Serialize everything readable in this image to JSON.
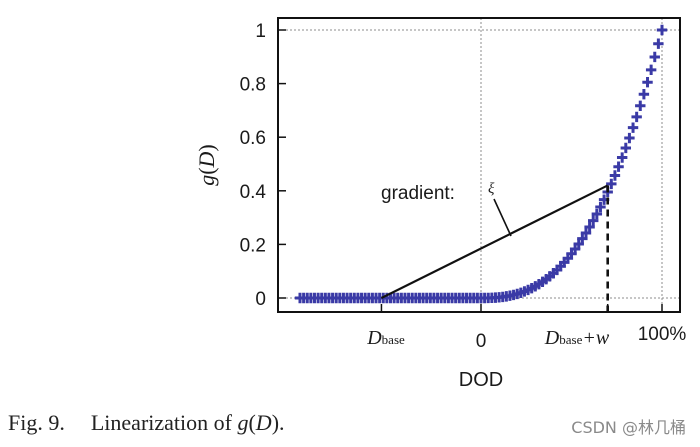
{
  "chart_data": {
    "type": "scatter",
    "title": "",
    "xlabel": "DOD",
    "ylabel_func": "g",
    "ylabel_arg": "D",
    "ylim": [
      0,
      1
    ],
    "y_ticks": [
      "0",
      "0.2",
      "0.4",
      "0.6",
      "0.8",
      "1"
    ],
    "x_tick_zero": "0",
    "x_tick_hundred": "100%",
    "x_tick_dbase_main": "D",
    "x_tick_dbase_sub": "base",
    "x_tick_dbasew_main": "D",
    "x_tick_dbasew_sub": "base",
    "x_tick_dbasew_suffix": "+w",
    "marker": "plus",
    "series_color": "#3a3aa6",
    "x_domain": [
      -1.0,
      1.0
    ],
    "x_positions": {
      "d_base": -0.55,
      "zero": 0.0,
      "d_base_w": 0.7,
      "hundred": 1.0
    },
    "curve": {
      "x_start": -1.0,
      "x_end": 1.0,
      "step": 0.02,
      "exponent": 2.6
    },
    "annotation_line": {
      "x_start": -0.55,
      "y_start": 0.0,
      "x_end": 0.7,
      "y_end": 0.42
    },
    "annotation_label": "gradient:",
    "annotation_symbol": "ξ",
    "grid": true
  },
  "caption": {
    "fig": "Fig. 9.",
    "text": "Linearization of",
    "expr_func": "g",
    "expr_arg": "D",
    "expr_tail": "."
  },
  "watermark": "CSDN @林几桶"
}
